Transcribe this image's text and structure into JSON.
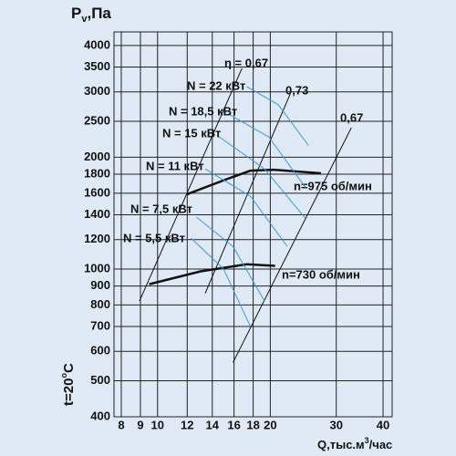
{
  "chart_data": {
    "type": "line",
    "y_label": {
      "main": "P",
      "sub": "v",
      "unit": ",Па"
    },
    "x_label": {
      "main": "Q,тыс.м",
      "sup": "3",
      "unit": "/час"
    },
    "side_label": {
      "main": "t=20",
      "sup": "o",
      "unit": "C"
    },
    "log_x": true,
    "log_y": true,
    "grid": true,
    "xlim": [
      7.65,
      42.3
    ],
    "ylim": [
      400,
      4350
    ],
    "xticks": [
      8,
      9,
      10,
      12,
      14,
      16,
      18,
      20,
      30,
      40
    ],
    "yticks": [
      400,
      500,
      600,
      700,
      800,
      900,
      1000,
      1200,
      1400,
      1600,
      1800,
      2000,
      2500,
      3000,
      3500,
      4000
    ],
    "series": [
      {
        "name": "n=975 об/мин",
        "color": "#111111",
        "width": 2.5,
        "x": [
          12.0,
          15.4,
          17.7,
          20.4,
          27.3
        ],
        "values": [
          1590,
          1750,
          1840,
          1850,
          1810
        ]
      },
      {
        "name": "n=730 об/мин",
        "color": "#111111",
        "width": 2.5,
        "x": [
          9.5,
          13.0,
          17.3,
          20.6
        ],
        "values": [
          910,
          985,
          1030,
          1020
        ]
      },
      {
        "name": "η = 0,67",
        "color": "#111111",
        "width": 1,
        "x": [
          8.95,
          16.8
        ],
        "values": [
          820,
          3470
        ]
      },
      {
        "name": "0,73",
        "color": "#111111",
        "width": 1,
        "x": [
          13.4,
          22.6
        ],
        "values": [
          860,
          2960
        ]
      },
      {
        "name": "0,67",
        "color": "#111111",
        "width": 1,
        "x": [
          15.9,
          32.9
        ],
        "values": [
          560,
          2400
        ]
      },
      {
        "name": "N = 22 кВт",
        "color": "#3a9ad9",
        "width": 1,
        "x": [
          17.3,
          21.0,
          25.3
        ],
        "values": [
          3100,
          2770,
          2150
        ]
      },
      {
        "name": "N = 18,5 кВт",
        "color": "#3a9ad9",
        "width": 1,
        "x": [
          15.4,
          19.8,
          24.8
        ],
        "values": [
          2620,
          2270,
          1660
        ]
      },
      {
        "name": "N = 15 кВт",
        "color": "#3a9ad9",
        "width": 1,
        "x": [
          14.6,
          19.3,
          24.8
        ],
        "values": [
          2270,
          1860,
          1370
        ]
      },
      {
        "name": "N = 11 кВт",
        "color": "#3a9ad9",
        "width": 1,
        "x": [
          13.4,
          17.7,
          22.2
        ],
        "values": [
          1860,
          1570,
          1150
        ]
      },
      {
        "name": "N = 7,5 кВт",
        "color": "#3a9ad9",
        "width": 1,
        "x": [
          12.7,
          15.9,
          19.3
        ],
        "values": [
          1380,
          1150,
          820
        ]
      },
      {
        "name": "N = 5,5 кВт",
        "color": "#3a9ad9",
        "width": 1,
        "x": [
          12.3,
          15.0,
          17.7
        ],
        "values": [
          1210,
          1000,
          700
        ]
      }
    ]
  }
}
